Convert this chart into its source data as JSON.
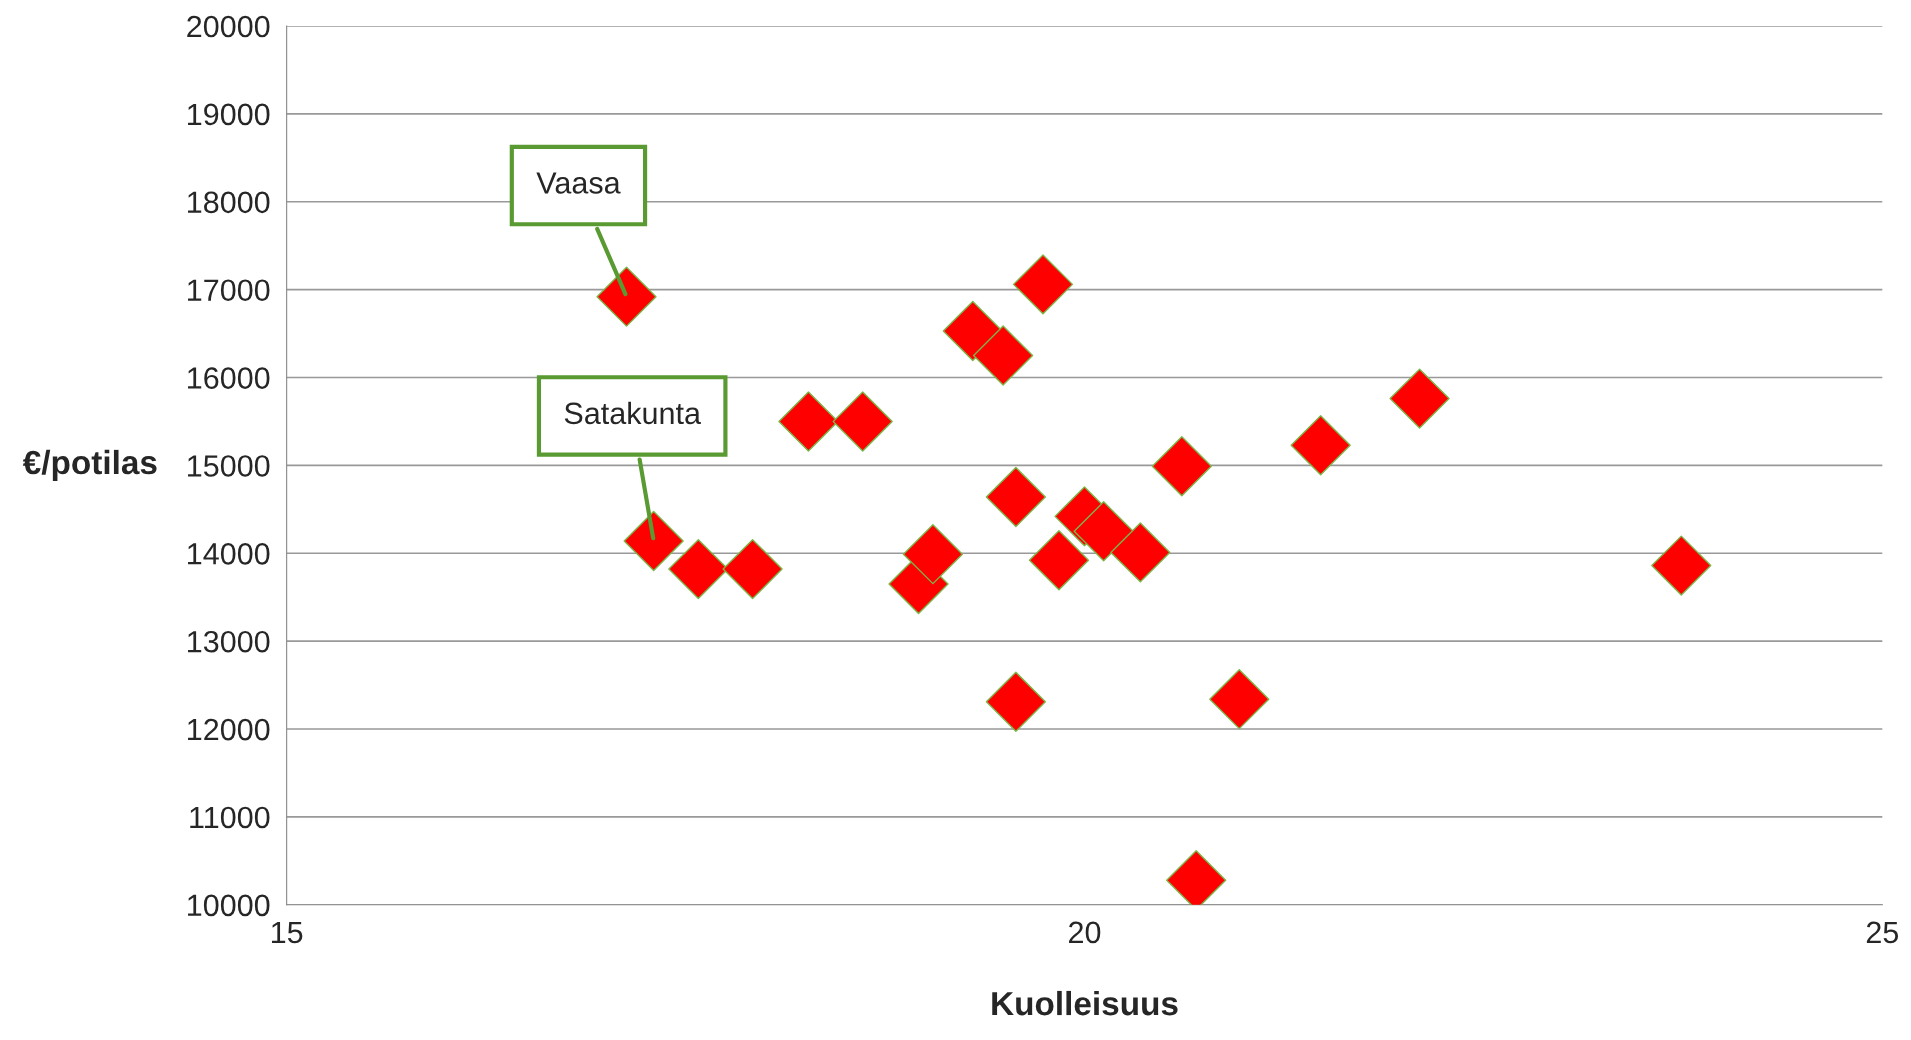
{
  "chart_data": {
    "type": "scatter",
    "xlabel": "Kuolleisuus",
    "ylabel": "€/potilas",
    "x": [
      17.13,
      17.3,
      17.58,
      17.92,
      18.27,
      18.61,
      18.96,
      19.05,
      19.3,
      19.49,
      19.74,
      19.57,
      19.57,
      19.84,
      20.0,
      20.12,
      20.35,
      20.61,
      20.7,
      20.97,
      21.48,
      22.1,
      23.74
    ],
    "series": [
      {
        "color": "#ff0000",
        "values": [
          16920,
          14140,
          13820,
          13820,
          15500,
          15500,
          13650,
          13990,
          16530,
          16250,
          17060,
          14640,
          12310,
          13920,
          14420,
          14250,
          14010,
          14990,
          10280,
          12340,
          15230,
          15760,
          13860
        ]
      }
    ],
    "xlim": [
      15,
      25
    ],
    "xticks": [
      15,
      20,
      25
    ],
    "ylim": [
      10000,
      20000
    ],
    "yticks": [
      10000,
      11000,
      12000,
      13000,
      14000,
      15000,
      16000,
      17000,
      18000,
      19000,
      20000
    ],
    "grid": "y",
    "marker": "diamond",
    "legend": false,
    "annotations": [
      {
        "text": "Vaasa",
        "x": 17.13,
        "y": 16920
      },
      {
        "text": "Satakunta",
        "x": 17.3,
        "y": 14140
      }
    ]
  }
}
